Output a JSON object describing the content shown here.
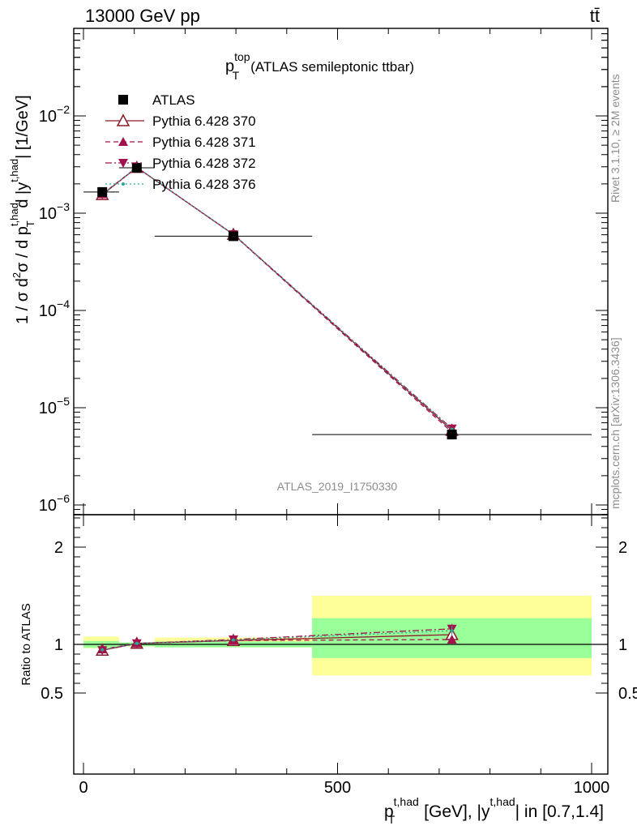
{
  "header": {
    "left": "13000 GeV pp",
    "right": "tt̄"
  },
  "title": {
    "main": "p",
    "sup": "top",
    "sub": "T",
    "rest": "(ATLAS semileptonic ttbar)"
  },
  "ylabel_top": "1 / σ d²σ / d p_T^{t,had} d |y^{t,had}| [1/GeV]",
  "ylabel_top_parts": {
    "a": "1 / σ d",
    "b": "2",
    "c": "σ / d p",
    "d": "t,had",
    "e": "T",
    "f": " d |y",
    "g": "t,had",
    "h": "| [1/GeV]"
  },
  "ylabel_bottom": "Ratio to ATLAS",
  "xlabel_parts": {
    "a": "p",
    "b": "t,had",
    "c": "T",
    "d": " [GeV], |y",
    "e": "t,had",
    "f": "| in [0.7,1.4]"
  },
  "side_label_top": "Rivet 3.1.10, ≥ 2M events",
  "side_label_bottom": "mcplots.cern.ch [arXiv:1306.3436]",
  "watermark": "ATLAS_2019_I1750330",
  "colors": {
    "data": "#000000",
    "p370": "#8b1a2b",
    "p371": "#a3124d",
    "p372": "#a3124d",
    "p376": "#2aa894",
    "band_inner": "#99ff99",
    "band_outer": "#ffff99"
  },
  "chart_data": {
    "type": "line",
    "x_bins": [
      [
        0,
        70
      ],
      [
        70,
        140
      ],
      [
        140,
        450
      ],
      [
        450,
        1000
      ]
    ],
    "x": [
      37,
      105,
      295,
      725
    ],
    "xlim": [
      -20,
      1020
    ],
    "top_panel": {
      "yscale": "log",
      "ylim": [
        7e-07,
        0.09
      ],
      "y_tick_labels": [
        "10^-6",
        "10^-5",
        "10^-4",
        "10^-3",
        "10^-2"
      ]
    },
    "bottom_panel": {
      "ylim": [
        0.38,
        2.38
      ],
      "y_ticks": [
        0.5,
        1,
        2
      ]
    },
    "x_ticks": [
      0,
      500,
      1000
    ],
    "legend_position": "top-left",
    "series": [
      {
        "name": "ATLAS",
        "marker": "square-filled",
        "style": "markers",
        "values": [
          0.00165,
          0.00293,
          0.00058,
          5.3e-06
        ],
        "ratio": [
          1.0,
          1.0,
          1.0,
          1.0
        ],
        "band_inner": [
          [
            0.965,
            1.035
          ],
          [
            0.98,
            1.02
          ],
          [
            0.97,
            1.03
          ],
          [
            0.86,
            1.27
          ]
        ],
        "band_outer": [
          [
            0.96,
            1.08
          ],
          [
            0.98,
            1.02
          ],
          [
            0.97,
            1.07
          ],
          [
            0.68,
            1.5
          ]
        ]
      },
      {
        "name": "Pythia 6.428 370",
        "marker": "triangle-up-open",
        "style": "solid",
        "values": [
          0.00155,
          0.00295,
          0.000605,
          5.85e-06
        ],
        "ratio": [
          0.94,
          1.01,
          1.04,
          1.1
        ]
      },
      {
        "name": "Pythia 6.428 371",
        "marker": "triangle-up-filled",
        "style": "dashed",
        "values": [
          0.00157,
          0.00296,
          0.000603,
          5.6e-06
        ],
        "ratio": [
          0.95,
          1.01,
          1.04,
          1.05
        ]
      },
      {
        "name": "Pythia 6.428 372",
        "marker": "triangle-down-filled",
        "style": "dashdot",
        "values": [
          0.00155,
          0.00296,
          0.000606,
          6.1e-06
        ],
        "ratio": [
          0.94,
          1.01,
          1.05,
          1.16
        ]
      },
      {
        "name": "Pythia 6.428 376",
        "marker": "dot",
        "style": "dotted",
        "values": [
          0.00156,
          0.00297,
          0.000604,
          6e-06
        ],
        "ratio": [
          0.945,
          1.01,
          1.045,
          1.14
        ]
      }
    ]
  }
}
